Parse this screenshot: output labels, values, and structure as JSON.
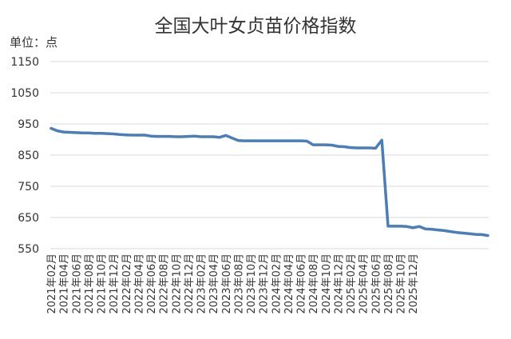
{
  "chart_data": {
    "type": "line",
    "title": "全国大叶女贞苗价格指数",
    "unit_label": "单位：点",
    "ylim": [
      550,
      1150
    ],
    "yticks": [
      550,
      650,
      750,
      850,
      950,
      1050,
      1150
    ],
    "grid": true,
    "legend": "none",
    "x_labels": [
      "2021年02月",
      "2021年04月",
      "2021年06月",
      "2021年08月",
      "2021年10月",
      "2021年12月",
      "2022年02月",
      "2022年04月",
      "2022年06月",
      "2022年08月",
      "2022年10月",
      "2022年12月",
      "2023年02月",
      "2023年04月",
      "2023年06月",
      "2023年08月",
      "2023年10月",
      "2023年12月",
      "2024年02月",
      "2024年04月",
      "2024年06月",
      "2024年08月",
      "2024年10月",
      "2024年12月",
      "2025年02月",
      "2025年04月",
      "2025年06月",
      "2025年08月",
      "2025年10月",
      "2025年12月"
    ],
    "series": [
      {
        "color": "#4a7ebb",
        "values": [
          936,
          928,
          924,
          923,
          922,
          921,
          921,
          920,
          920,
          919,
          918,
          916,
          915,
          914,
          914,
          914,
          911,
          910,
          910,
          910,
          909,
          909,
          910,
          911,
          909,
          909,
          909,
          907,
          913,
          905,
          897,
          896,
          896,
          896,
          896,
          896,
          896,
          896,
          896,
          896,
          896,
          895,
          883,
          883,
          883,
          882,
          878,
          877,
          874,
          873,
          873,
          873,
          872,
          898,
          622,
          622,
          622,
          621,
          617,
          621,
          613,
          612,
          610,
          608,
          605,
          602,
          600,
          598,
          596,
          595,
          592
        ]
      }
    ]
  }
}
